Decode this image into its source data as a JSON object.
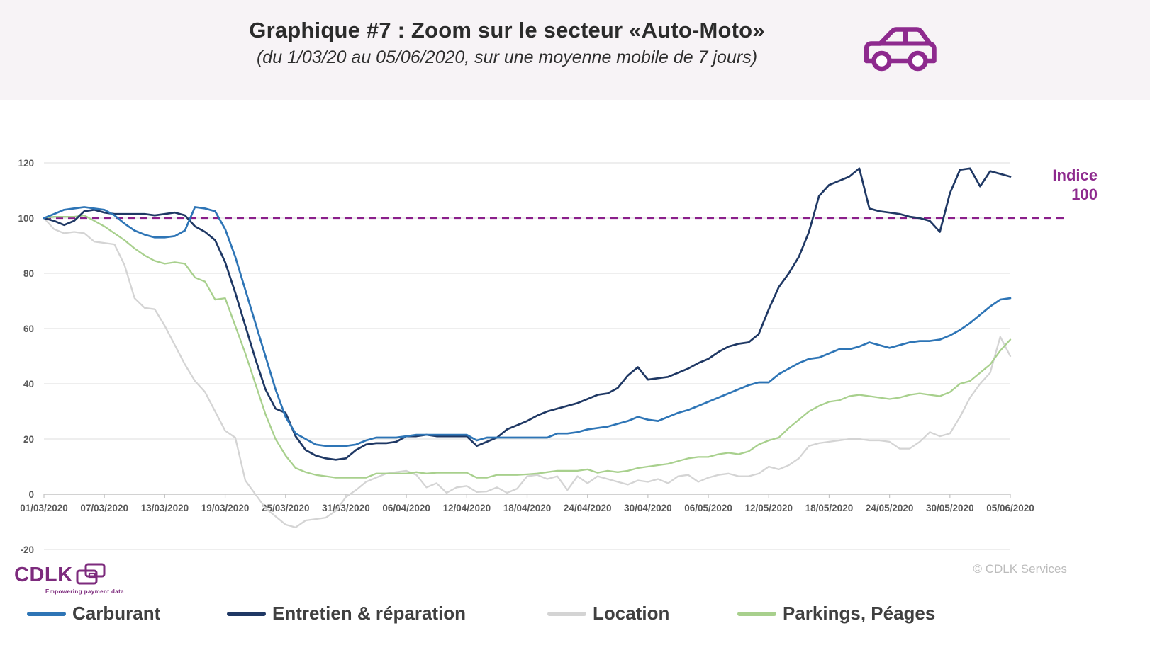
{
  "header": {
    "title": "Graphique #7 : Zoom sur le secteur «Auto-Moto»",
    "subtitle": "(du 1/03/20 au 05/06/2020, sur une moyenne mobile de 7 jours)"
  },
  "annotations": {
    "indice_line1": "Indice",
    "indice_line2": "100"
  },
  "footer": {
    "logo_text": "CDLK",
    "logo_tagline": "Empowering payment data",
    "copyright": "© CDLK Services"
  },
  "colors": {
    "header_bg": "#f7f3f6",
    "purple": "#8e2a8e",
    "dashed_line": "#8a1f8a",
    "grid": "#dcdcdc",
    "axis": "#c4c4c4",
    "tick_text": "#595959"
  },
  "chart_data": {
    "type": "line",
    "title": "Graphique #7 : Zoom sur le secteur «Auto-Moto»",
    "x_start": "01/03/2020",
    "x_end": "05/06/2020",
    "points_per_series": 97,
    "x_tick_labels": [
      "01/03/2020",
      "07/03/2020",
      "13/03/2020",
      "19/03/2020",
      "25/03/2020",
      "31/03/2020",
      "06/04/2020",
      "12/04/2020",
      "18/04/2020",
      "24/04/2020",
      "30/04/2020",
      "06/05/2020",
      "12/05/2020",
      "18/05/2020",
      "24/05/2020",
      "30/05/2020",
      "05/06/2020"
    ],
    "y_ticks": [
      -20,
      0,
      20,
      40,
      60,
      80,
      100,
      120
    ],
    "ylim": [
      -20,
      127
    ],
    "grid": true,
    "legend_position": "bottom",
    "reference_line": {
      "value": 100,
      "label": "Indice 100",
      "style": "dashed",
      "color": "#8a1f8a"
    },
    "series": [
      {
        "name": "Carburant",
        "color": "#2E75B6",
        "values": [
          100,
          101.5,
          103,
          103.5,
          104,
          103.5,
          103,
          101,
          98,
          95.5,
          94,
          93,
          93,
          93.5,
          95.5,
          104,
          103.5,
          102.5,
          96,
          86,
          74,
          62,
          50,
          38,
          28,
          22,
          20,
          18,
          17.5,
          17.5,
          17.5,
          18,
          19.5,
          20.5,
          20.5,
          20.5,
          21,
          21.5,
          21.5,
          21.5,
          21.5,
          21.5,
          21.5,
          19.5,
          20.5,
          20.5,
          20.5,
          20.5,
          20.5,
          20.5,
          20.5,
          22,
          22,
          22.5,
          23.5,
          24,
          24.5,
          25.5,
          26.5,
          28,
          27,
          26.5,
          28,
          29.5,
          30.5,
          32,
          33.5,
          35,
          36.5,
          38,
          39.5,
          40.5,
          40.5,
          43.5,
          45.5,
          47.5,
          49,
          49.5,
          51,
          52.5,
          52.5,
          53.5,
          55,
          54,
          53,
          54,
          55,
          55.5,
          55.5,
          56,
          57.5,
          59.5,
          62,
          65,
          68,
          70.5,
          71
        ]
      },
      {
        "name": "Entretien & réparation",
        "color": "#1F3864",
        "values": [
          100,
          99,
          97.5,
          99,
          102.5,
          103,
          102,
          101.5,
          101.5,
          101.5,
          101.5,
          101,
          101.5,
          102,
          101,
          97,
          95,
          92,
          84,
          73,
          61,
          49,
          38,
          31,
          29.5,
          21,
          16,
          14,
          13,
          12.5,
          13,
          16,
          18,
          18.5,
          18.5,
          19,
          21,
          21,
          21.5,
          21,
          21,
          21,
          21,
          17.5,
          19,
          20.5,
          23.5,
          25,
          26.5,
          28.5,
          30,
          31,
          32,
          33,
          34.5,
          36,
          36.5,
          38.5,
          43,
          46,
          41.5,
          42,
          42.5,
          44,
          45.5,
          47.5,
          49,
          51.5,
          53.5,
          54.5,
          55,
          58,
          67,
          75,
          80,
          86,
          95,
          108,
          112,
          113.5,
          115,
          118,
          103.5,
          102.5,
          102,
          101.5,
          100.5,
          100,
          99,
          95,
          109,
          117.5,
          118,
          111.5,
          117,
          116,
          115
        ]
      },
      {
        "name": "Location",
        "color": "#D4D4D4",
        "values": [
          100,
          96,
          94.5,
          95,
          94.5,
          91.5,
          91,
          90.5,
          83,
          71,
          67.5,
          67,
          61,
          54,
          47,
          41,
          37,
          30,
          23,
          20.5,
          5,
          0,
          -5,
          -8,
          -11,
          -12,
          -9.5,
          -9,
          -8.5,
          -6,
          -1,
          1.5,
          4.5,
          6,
          7.5,
          8,
          8.5,
          7,
          2.5,
          4,
          0.5,
          2.5,
          3,
          0.8,
          1,
          2.5,
          0.5,
          2,
          6.5,
          7,
          5.5,
          6.5,
          1.5,
          6.5,
          4,
          6.5,
          5.5,
          4.5,
          3.5,
          5,
          4.5,
          5.5,
          4,
          6.5,
          7,
          4.5,
          6,
          7,
          7.5,
          6.5,
          6.5,
          7.5,
          10,
          9,
          10.5,
          13,
          17.5,
          18.5,
          19,
          19.5,
          20,
          20,
          19.5,
          19.5,
          19,
          16.5,
          16.5,
          19,
          22.5,
          21,
          22,
          28,
          35,
          40,
          44,
          57,
          50
        ]
      },
      {
        "name": "Parkings, Péages",
        "color": "#A8D08D",
        "values": [
          100,
          100.5,
          100.5,
          100.5,
          101,
          99,
          97,
          94.5,
          92,
          89,
          86.5,
          84.5,
          83.5,
          84,
          83.5,
          78.5,
          77,
          70.5,
          71,
          61,
          51,
          40,
          29,
          20,
          14,
          9.5,
          8,
          7,
          6.5,
          6,
          6,
          6,
          6,
          7.5,
          7.5,
          7.5,
          7.5,
          8,
          7.5,
          7.8,
          7.8,
          7.8,
          7.8,
          6,
          6,
          7,
          7,
          7,
          7.2,
          7.5,
          8,
          8.5,
          8.5,
          8.5,
          9,
          7.8,
          8.5,
          8,
          8.5,
          9.5,
          10,
          10.5,
          11,
          12,
          13,
          13.5,
          13.5,
          14.5,
          15,
          14.5,
          15.5,
          18,
          19.5,
          20.5,
          24,
          27,
          30,
          32,
          33.5,
          34,
          35.5,
          36,
          35.5,
          35,
          34.5,
          35,
          36,
          36.5,
          36,
          35.5,
          37,
          40,
          41,
          44,
          47,
          52,
          56
        ]
      }
    ]
  },
  "legend": {
    "items": [
      {
        "label": "Carburant"
      },
      {
        "label": "Entretien & réparation"
      },
      {
        "label": "Location"
      },
      {
        "label": "Parkings, Péages"
      }
    ]
  }
}
